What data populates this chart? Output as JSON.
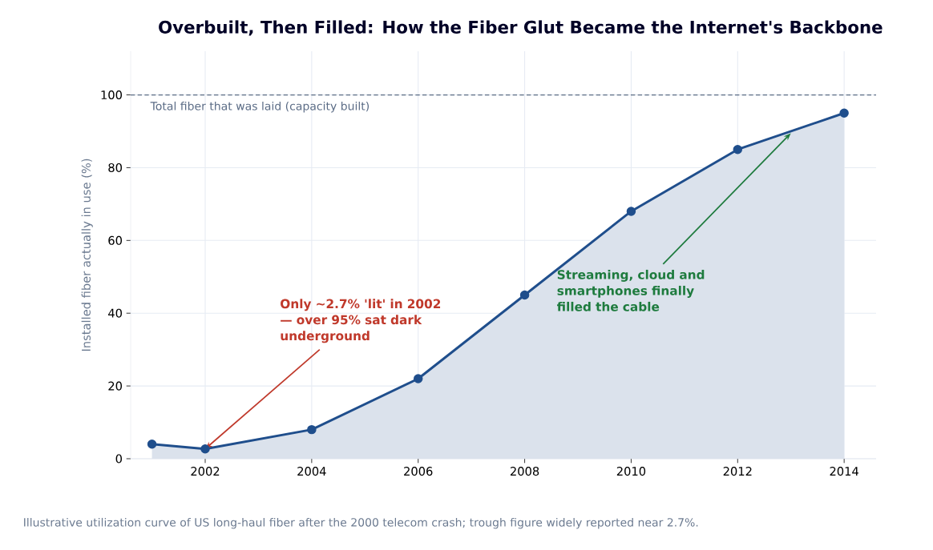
{
  "chart_data": {
    "type": "area",
    "title": "Overbuilt, Then Filled: How the Fiber Glut Became the Internet's Backbone",
    "ylabel": "Installed fiber actually in use (%)",
    "x": [
      2001,
      2002,
      2004,
      2006,
      2008,
      2010,
      2012,
      2014
    ],
    "series": [
      {
        "color": "#1f4e8c",
        "values": [
          4,
          2.7,
          8,
          22,
          45,
          68,
          85,
          95
        ]
      }
    ],
    "xlim": [
      2000.6,
      2014.6
    ],
    "ylim": [
      0,
      112
    ],
    "xticks": [
      2002,
      2004,
      2006,
      2008,
      2010,
      2012,
      2014
    ],
    "yticks": [
      0,
      20,
      40,
      60,
      80,
      100
    ],
    "grid": true,
    "marker": "circle",
    "line_style": "solid",
    "ref_lines": [
      {
        "axis": "y",
        "value": 100,
        "label": "Total fiber that was laid (capacity built)",
        "color": "#5a6b85",
        "line_style": "dashed"
      }
    ],
    "annotations": [
      {
        "text": "Only ~2.7% 'lit' in 2002 — over 95% sat dark underground",
        "x": 2002,
        "y": 2.7
      },
      {
        "text": "Streaming, cloud and smartphones finally filled the cable",
        "x": 2013,
        "y": 89.5
      },
      "Illustrative utilization curve of US long-haul fiber after the 2000 telecom crash; trough figure widely reported near 2.7%."
    ]
  }
}
